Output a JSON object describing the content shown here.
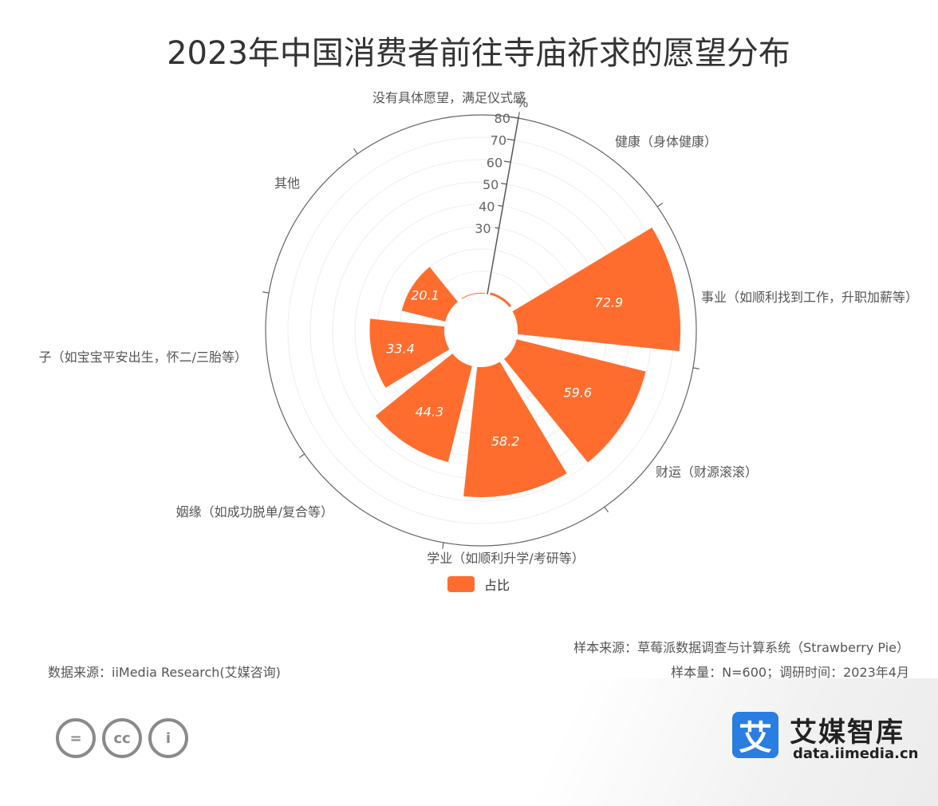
{
  "title": "2023年中国消费者前往寺庙祈求的愿望分布",
  "chart_data": {
    "type": "polar-bar",
    "title": "2023年中国消费者前往寺庙祈求的愿望分布",
    "unit": "%",
    "categories": [
      "没有具体愿望，满足仪式感",
      "健康（身体健康）",
      "事业（如顺利找到工作，升职加薪等）",
      "财运（财源滚滚）",
      "学业（如顺利升学/考研等）",
      "姻缘（如成功脱单/复合等）",
      "子（如宝宝平安出生，怀二/三胎等）",
      "其他"
    ],
    "series": [
      {
        "name": "占比",
        "values": [
          1.1,
          72.9,
          59.6,
          58.2,
          44.3,
          33.4,
          20.1,
          0.4
        ]
      }
    ],
    "radial_ticks": [
      "30",
      "40",
      "50",
      "60",
      "70",
      "80"
    ],
    "radial_range": [
      0,
      80
    ],
    "color": "#ff6d2e",
    "legend": "bottom-center"
  },
  "legend_label": "占比",
  "footer": {
    "source": "数据来源：iiMedia Research(艾媒咨询)",
    "sample_source": "样本来源：草莓派数据调查与计算系统（Strawberry Pie）",
    "sample_size": "样本量：N=600；调研时间：2023年4月"
  },
  "license_icons": [
    "=",
    "cc",
    "i"
  ],
  "brand": {
    "logo_char": "艾",
    "name": "艾媒智库",
    "url": "data.iimedia.cn"
  }
}
